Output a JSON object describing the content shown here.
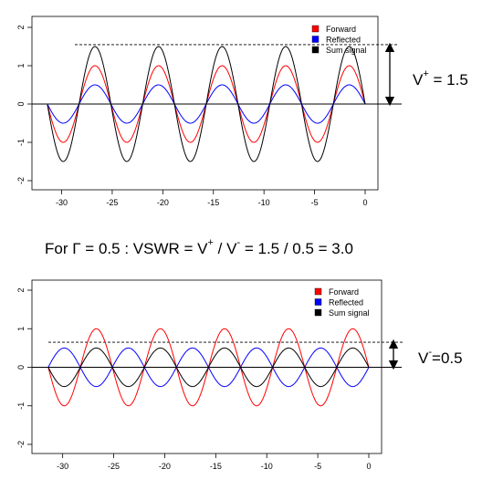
{
  "colors": {
    "forward": "#ff0000",
    "reflected": "#0000ff",
    "sum": "#000000"
  },
  "annotations": {
    "top_label": {
      "base": "V",
      "sup": "+",
      "rest": " = 1.5"
    },
    "middle_formula": {
      "part1": "For Γ = 0.5 : VSWR = V",
      "sup1": "+",
      "part2": " / V",
      "sup2": "-",
      "part3": " = 1.5 / 0.5 = 3.0"
    },
    "bottom_label": {
      "base": "V",
      "sup": "-",
      "rest": "=0.5"
    }
  },
  "chart_data": [
    {
      "type": "line",
      "xlim": [
        -31.4,
        0
      ],
      "ylim": [
        -2,
        2
      ],
      "xticks": [
        -30,
        -25,
        -20,
        -15,
        -10,
        -5,
        0
      ],
      "yticks": [
        -2,
        -1,
        0,
        1,
        2
      ],
      "grid": false,
      "legend": "top-right",
      "series": [
        {
          "name": "Forward",
          "amplitude": 1.0,
          "wavelength": 6.283,
          "phase_deg": 0
        },
        {
          "name": "Reflected",
          "amplitude": 0.5,
          "wavelength": 6.283,
          "phase_deg": 0
        },
        {
          "name": "Sum signal",
          "amplitude": 1.5,
          "wavelength": 6.283,
          "phase_deg": 0
        }
      ],
      "reference_lines": {
        "dashed_y": 1.55,
        "solid_y": 0
      }
    },
    {
      "type": "line",
      "xlim": [
        -31.4,
        0
      ],
      "ylim": [
        -2,
        2
      ],
      "xticks": [
        -30,
        -25,
        -20,
        -15,
        -10,
        -5,
        0
      ],
      "yticks": [
        -2,
        -1,
        0,
        1,
        2
      ],
      "grid": false,
      "legend": "top-right",
      "series": [
        {
          "name": "Forward",
          "amplitude": 1.0,
          "wavelength": 6.283,
          "phase_deg": 0
        },
        {
          "name": "Reflected",
          "amplitude": 0.5,
          "wavelength": 6.283,
          "phase_deg": 180
        },
        {
          "name": "Sum signal",
          "amplitude": 0.5,
          "wavelength": 6.283,
          "phase_deg": 0
        }
      ],
      "reference_lines": {
        "dashed_y": 0.65,
        "solid_y": 0
      }
    }
  ]
}
